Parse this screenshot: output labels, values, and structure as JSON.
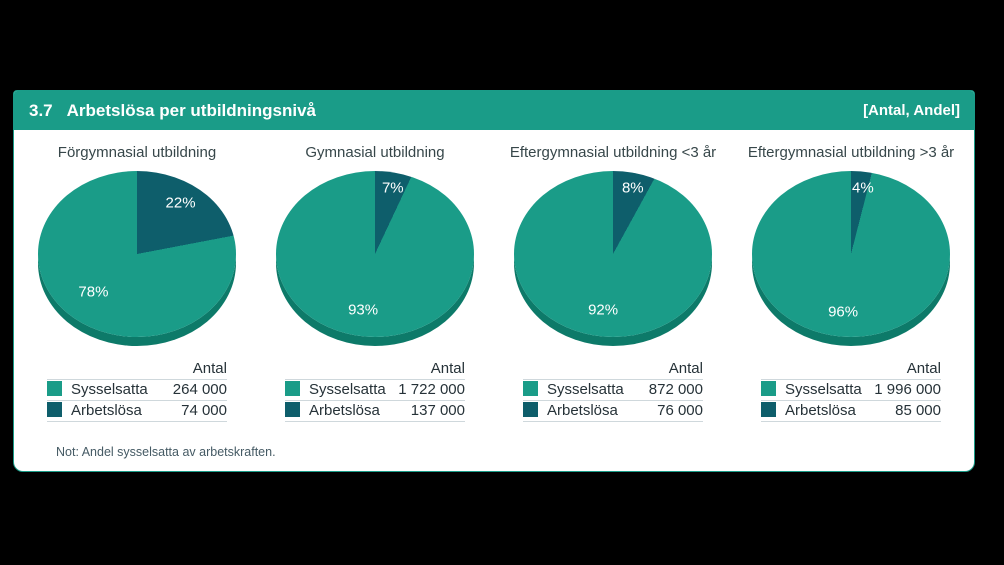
{
  "header": {
    "number": "3.7",
    "title": "Arbetslösa per utbildningsnivå",
    "right_label": "[Antal, Andel]"
  },
  "legend_header": "Antal",
  "note": "Not: Andel sysselsatta av arbetskraften.",
  "colors": {
    "employed": "#1a9c88",
    "unemployed": "#0e5e6b",
    "pie_rim": "#0d7a69",
    "header_bar": "#1a9c88",
    "background": "#000000"
  },
  "chart_data": [
    {
      "type": "pie",
      "title": "Förgymnasial utbildning",
      "legend_position": "bottom",
      "slices": [
        {
          "label": "Sysselsatta",
          "pct": 78,
          "pct_text": "78%",
          "antal": 264000,
          "antal_text": "264 000"
        },
        {
          "label": "Arbetslösa",
          "pct": 22,
          "pct_text": "22%",
          "antal": 74000,
          "antal_text": "74 000"
        }
      ]
    },
    {
      "type": "pie",
      "title": "Gymnasial utbildning",
      "legend_position": "bottom",
      "slices": [
        {
          "label": "Sysselsatta",
          "pct": 93,
          "pct_text": "93%",
          "antal": 1722000,
          "antal_text": "1 722 000"
        },
        {
          "label": "Arbetslösa",
          "pct": 7,
          "pct_text": "7%",
          "antal": 137000,
          "antal_text": "137 000"
        }
      ]
    },
    {
      "type": "pie",
      "title": "Eftergymnasial utbildning <3 år",
      "legend_position": "bottom",
      "slices": [
        {
          "label": "Sysselsatta",
          "pct": 92,
          "pct_text": "92%",
          "antal": 872000,
          "antal_text": "872 000"
        },
        {
          "label": "Arbetslösa",
          "pct": 8,
          "pct_text": "8%",
          "antal": 76000,
          "antal_text": "76 000"
        }
      ]
    },
    {
      "type": "pie",
      "title": "Eftergymnasial utbildning >3 år",
      "legend_position": "bottom",
      "slices": [
        {
          "label": "Sysselsatta",
          "pct": 96,
          "pct_text": "96%",
          "antal": 1996000,
          "antal_text": "1 996 000"
        },
        {
          "label": "Arbetslösa",
          "pct": 4,
          "pct_text": "4%",
          "antal": 85000,
          "antal_text": "85 000"
        }
      ]
    }
  ]
}
